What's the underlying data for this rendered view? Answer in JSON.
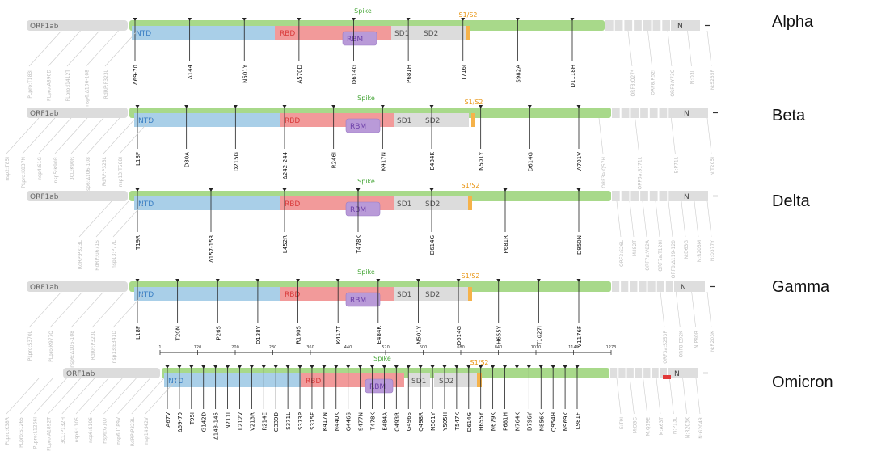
{
  "colors": {
    "spike": "#a8d98a",
    "ntd": "#a9cfe8",
    "rbd": "#f29a9a",
    "rbm": "#b99ad8",
    "sd": "#dcdcdc",
    "s1s2": "#f5b24a",
    "orf": "#dcdcdc",
    "spike_label": "#4aa83c",
    "s1s2_label": "#e89410",
    "rbd_text": "#d83a3a",
    "ntd_text": "#3a7fc4",
    "rbm_text": "#6c3ea8",
    "mutation_text": "#111111",
    "other_text": "#bbbbbb"
  },
  "domains": {
    "orf1ab": "ORF1ab",
    "ntd": "NTD",
    "rbd": "RBD",
    "rbm": "RBM",
    "sd1": "SD1",
    "sd2": "SD2",
    "s1s2": "S1/S2",
    "spike": "Spike",
    "n": "N"
  },
  "variants": [
    {
      "name": "Alpha",
      "spike_mutations": [
        "Δ69-70",
        "Δ144",
        "N501Y",
        "A570D",
        "D614G",
        "P681H",
        "T716I",
        "S982A",
        "D1118H"
      ],
      "left_mutations": [
        "PLpro:T183I",
        "PLpro:A890D",
        "PLpro:I1412T",
        "nsp6:Δ106-108",
        "RdRP:P323L"
      ],
      "right_mutations": [
        "ORF8:Q27*",
        "ORF8:R52I",
        "ORF8:Y73C",
        "N:D3L",
        "N:S235F"
      ]
    },
    {
      "name": "Beta",
      "spike_mutations": [
        "L18F",
        "D80A",
        "D215G",
        "Δ242-244",
        "R246I",
        "K417N",
        "E484K",
        "N501Y",
        "D614G",
        "A701V"
      ],
      "left_mutations": [
        "nsp2:T85I",
        "PLpro:K837N",
        "nsp4:S1G",
        "nsp5:K90R",
        "3CL:K90R",
        "nsp6:Δ106-108",
        "RdRP:P323L",
        "nsp13:T588I"
      ],
      "right_mutations": [
        "ORF3a:Q57H",
        "ORF3a:S171L",
        "E:P71L",
        "N:T205I"
      ]
    },
    {
      "name": "Delta",
      "spike_mutations": [
        "T19R",
        "Δ157-158",
        "L452R",
        "T478K",
        "D614G",
        "P681R",
        "D950N"
      ],
      "left_mutations": [
        "RdRP:P323L",
        "RdRP:G671S",
        "nsp13:P77L"
      ],
      "right_mutations": [
        "ORF3:S26L",
        "M:I82T",
        "ORF7a:V82A",
        "ORF7a:T120I",
        "ORF8:Δ119-120",
        "N:D63G",
        "N:R203M",
        "N:D377Y"
      ]
    },
    {
      "name": "Gamma",
      "spike_mutations": [
        "L18F",
        "T20N",
        "P26S",
        "D138Y",
        "R190S",
        "K417T",
        "E484K",
        "N501Y",
        "D614G",
        "H655Y",
        "T1027I",
        "V1176F"
      ],
      "left_mutations": [
        "PLpro:S370L",
        "PLpro:K977Q",
        "nsp6:Δ106-108",
        "RdRP:P323L",
        "nsp13:E341D"
      ],
      "right_mutations": [
        "ORF3a:S253P",
        "ORF8:E92K",
        "N:P80R",
        "N:R203K"
      ]
    },
    {
      "name": "Omicron",
      "spike_mutations": [
        "A67V",
        "Δ69-70",
        "T95I",
        "G142D",
        "Δ143-145",
        "N211I",
        "L212V",
        "V213R",
        "R214E",
        "G339D",
        "S371L",
        "S373P",
        "S375F",
        "K417N",
        "N440K",
        "G446S",
        "S477N",
        "T478K",
        "E484A",
        "Q493R",
        "G496S",
        "Q498R",
        "N501Y",
        "Y505H",
        "T547K",
        "D614G",
        "H655Y",
        "N679K",
        "P681H",
        "N764K",
        "D796Y",
        "N856K",
        "Q954H",
        "N969K",
        "L981F"
      ],
      "left_mutations": [
        "PLpro:K38R",
        "PLpro:S1265",
        "PLpro:L1266I",
        "PLpro:A1892T",
        "3CL:P132H",
        "nsp6:L105",
        "nsp6:S106",
        "nsp6:G107",
        "nsp6:I189V",
        "RdRP:P323L",
        "nsp14:I42V"
      ],
      "right_mutations": [
        "E:T9I",
        "M:D3G",
        "M:Q19E",
        "M:A63T",
        "N:P13L",
        "N:R203K",
        "N:G204R"
      ],
      "scale_ticks": [
        "1",
        "120",
        "200",
        "280",
        "360",
        "440",
        "520",
        "600",
        "680",
        "840",
        "1010",
        "1140",
        "1273"
      ]
    }
  ]
}
